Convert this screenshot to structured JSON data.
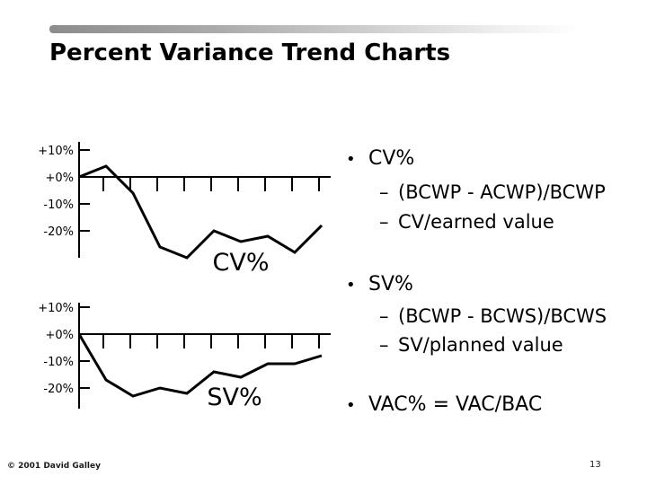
{
  "slide": {
    "title": "Percent Variance Trend Charts",
    "footer_left": "© 2001 David Galley",
    "page_number": "13"
  },
  "glyphs": {
    "bullet": "•",
    "dash": "–"
  },
  "bullets": [
    {
      "label": "CV%",
      "subs": [
        "(BCWP - ACWP)/BCWP",
        "CV/earned value"
      ]
    },
    {
      "label": "SV%",
      "subs": [
        "(BCWP - BCWS)/BCWS",
        "SV/planned value"
      ]
    },
    {
      "label": "VAC% = VAC/BAC",
      "subs": []
    }
  ],
  "chart_data": [
    {
      "type": "line",
      "title": "CV%",
      "x": [
        1,
        2,
        3,
        4,
        5,
        6,
        7,
        8,
        9,
        10
      ],
      "values": [
        0,
        4,
        -6,
        -26,
        -30,
        -20,
        -24,
        -22,
        -28,
        -18
      ],
      "yticks": [
        {
          "label": "+10%",
          "value": 10
        },
        {
          "label": "+0%",
          "value": 0
        },
        {
          "label": "-10%",
          "value": -10
        },
        {
          "label": "-20%",
          "value": -20
        }
      ],
      "ylim": [
        -32,
        13
      ],
      "x_tick_count": 9,
      "x_tick_labels": [],
      "grid": false,
      "line_color": "#000000",
      "axis_color": "#000000",
      "legend": "none"
    },
    {
      "type": "line",
      "title": "SV%",
      "x": [
        1,
        2,
        3,
        4,
        5,
        6,
        7,
        8,
        9,
        10
      ],
      "values": [
        0,
        -17,
        -23,
        -20,
        -22,
        -14,
        -16,
        -11,
        -11,
        -8
      ],
      "yticks": [
        {
          "label": "+10%",
          "value": 10
        },
        {
          "label": "+0%",
          "value": 0
        },
        {
          "label": "-10%",
          "value": -10
        },
        {
          "label": "-20%",
          "value": -20
        }
      ],
      "ylim": [
        -28,
        12
      ],
      "x_tick_count": 9,
      "x_tick_labels": [],
      "grid": false,
      "line_color": "#000000",
      "axis_color": "#000000",
      "legend": "none"
    }
  ]
}
